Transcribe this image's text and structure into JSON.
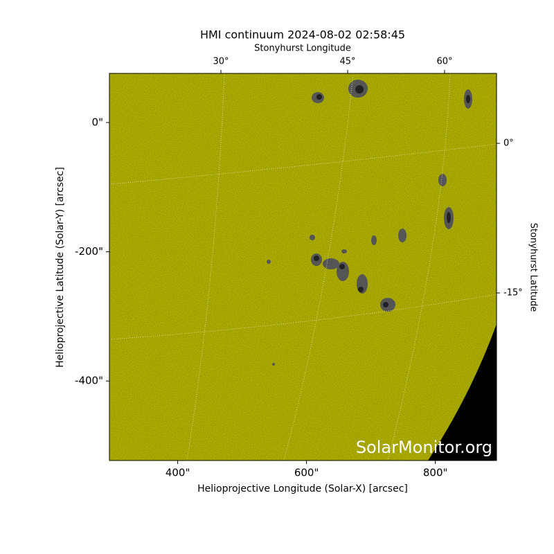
{
  "chart_data": {
    "type": "image",
    "title": "HMI continuum 2024-08-02 02:58:45",
    "x_label": "Helioprojective Longitude (Solar-X) [arcsec]",
    "y_label": "Helioprojective Latitude (Solar-Y) [arcsec]",
    "top_axis_label": "Stonyhurst Longitude",
    "right_axis_label": "Stonyhurst Latitude",
    "xlim": [
      294,
      895
    ],
    "ylim": [
      -523,
      76
    ],
    "xticks": [
      {
        "value": 400,
        "label": "400\""
      },
      {
        "value": 600,
        "label": "600\""
      },
      {
        "value": 800,
        "label": "800\""
      }
    ],
    "yticks": [
      {
        "value": 0,
        "label": "0\""
      },
      {
        "value": -200,
        "label": "-200\""
      },
      {
        "value": -400,
        "label": "-400\""
      }
    ],
    "lon_ticks": [
      {
        "value": 30,
        "label": "30°"
      },
      {
        "value": 45,
        "label": "45°"
      },
      {
        "value": 60,
        "label": "60°"
      }
    ],
    "lat_ticks": [
      {
        "value": 0,
        "label": "0°"
      },
      {
        "value": -15,
        "label": "-15°"
      }
    ],
    "watermark": "SolarMonitor.org",
    "color": "#c8c800"
  }
}
